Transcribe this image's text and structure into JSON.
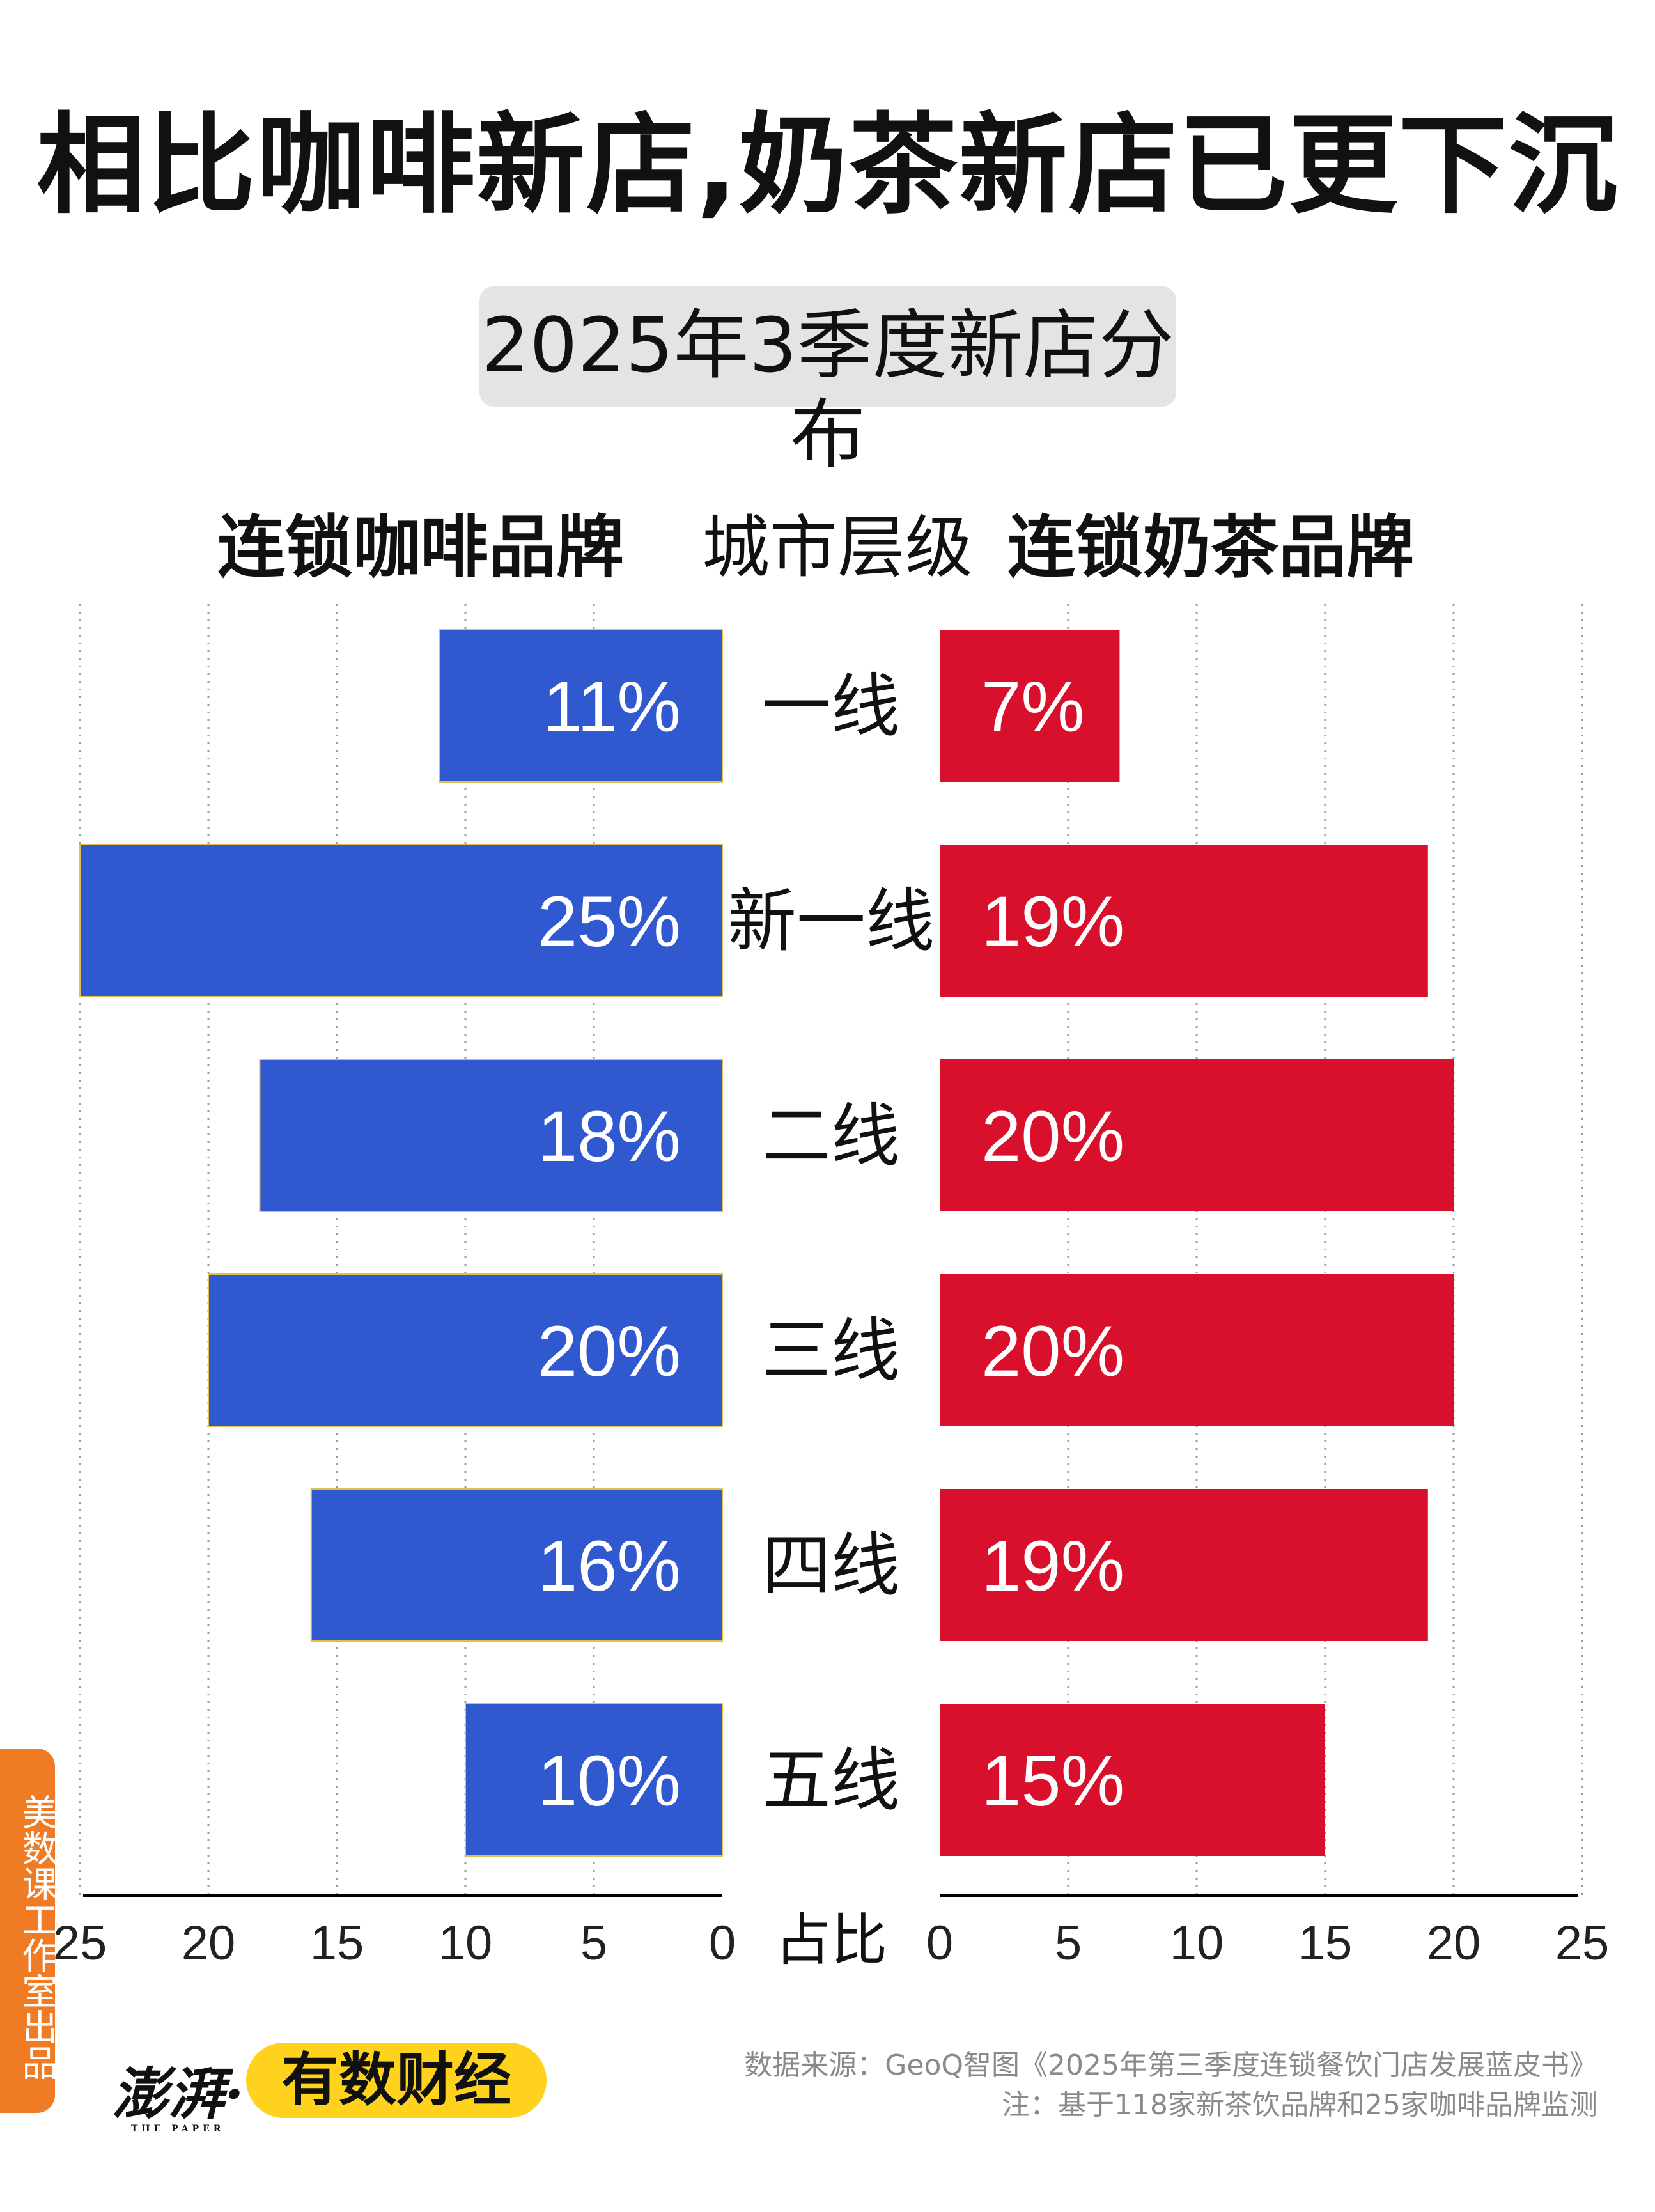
{
  "title": "相比咖啡新店,奶茶新店已更下沉",
  "subtitle": "2025年3季度新店分布",
  "headers": {
    "left": "连锁咖啡品牌",
    "middle": "城市层级",
    "right": "连锁奶茶品牌"
  },
  "chart_data": {
    "type": "bar",
    "orientation": "horizontal-diverging",
    "categories": [
      "一线",
      "新一线",
      "二线",
      "三线",
      "四线",
      "五线"
    ],
    "series": [
      {
        "name": "连锁咖啡品牌",
        "values": [
          11,
          25,
          18,
          20,
          16,
          10
        ],
        "labels": [
          "11%",
          "25%",
          "18%",
          "20%",
          "16%",
          "10%"
        ],
        "color": "#3059d0",
        "side": "left"
      },
      {
        "name": "连锁奶茶品牌",
        "values": [
          7,
          19,
          20,
          20,
          19,
          15
        ],
        "labels": [
          "7%",
          "19%",
          "20%",
          "20%",
          "19%",
          "15%"
        ],
        "color": "#d8102b",
        "side": "right"
      }
    ],
    "xlim": [
      0,
      25
    ],
    "ticks": [
      0,
      5,
      10,
      15,
      20,
      25
    ],
    "xlabel": "占比",
    "grid": "vertical-dotted"
  },
  "side_label": "美数课工作室出品",
  "logos": {
    "thepaper": "澎湃·",
    "thepaper_sub": "THE PAPER",
    "brand": "有数财经"
  },
  "source": {
    "line1": "数据来源：GeoQ智图《2025年第三季度连锁餐饮门店发展蓝皮书》",
    "line2": "注：基于118家新茶饮品牌和25家咖啡品牌监测"
  }
}
